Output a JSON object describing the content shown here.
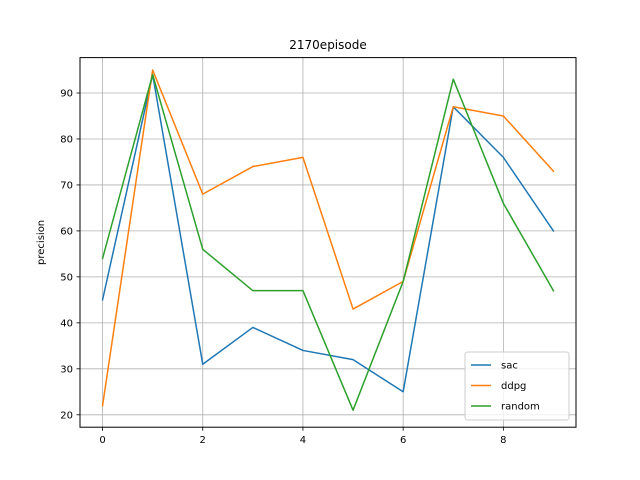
{
  "chart_data": {
    "type": "line",
    "title": "2170episode",
    "xlabel": "",
    "ylabel": "precision",
    "x": [
      0,
      1,
      2,
      3,
      4,
      5,
      6,
      7,
      8,
      9
    ],
    "xlim": [
      -0.45,
      9.45
    ],
    "ylim": [
      17.3,
      97.7
    ],
    "xticks": [
      0,
      2,
      4,
      6,
      8
    ],
    "yticks": [
      20,
      30,
      40,
      50,
      60,
      70,
      80,
      90
    ],
    "grid": true,
    "legend_position": "lower-right",
    "series": [
      {
        "name": "sac",
        "color": "#1f77b4",
        "values": [
          45,
          94,
          31,
          39,
          34,
          32,
          25,
          87,
          76,
          60
        ]
      },
      {
        "name": "ddpg",
        "color": "#ff7f0e",
        "values": [
          22,
          95,
          68,
          74,
          76,
          43,
          49,
          87,
          85,
          73
        ]
      },
      {
        "name": "random",
        "color": "#2ca02c",
        "values": [
          54,
          94,
          56,
          47,
          47,
          21,
          49,
          93,
          66,
          47
        ]
      }
    ]
  }
}
